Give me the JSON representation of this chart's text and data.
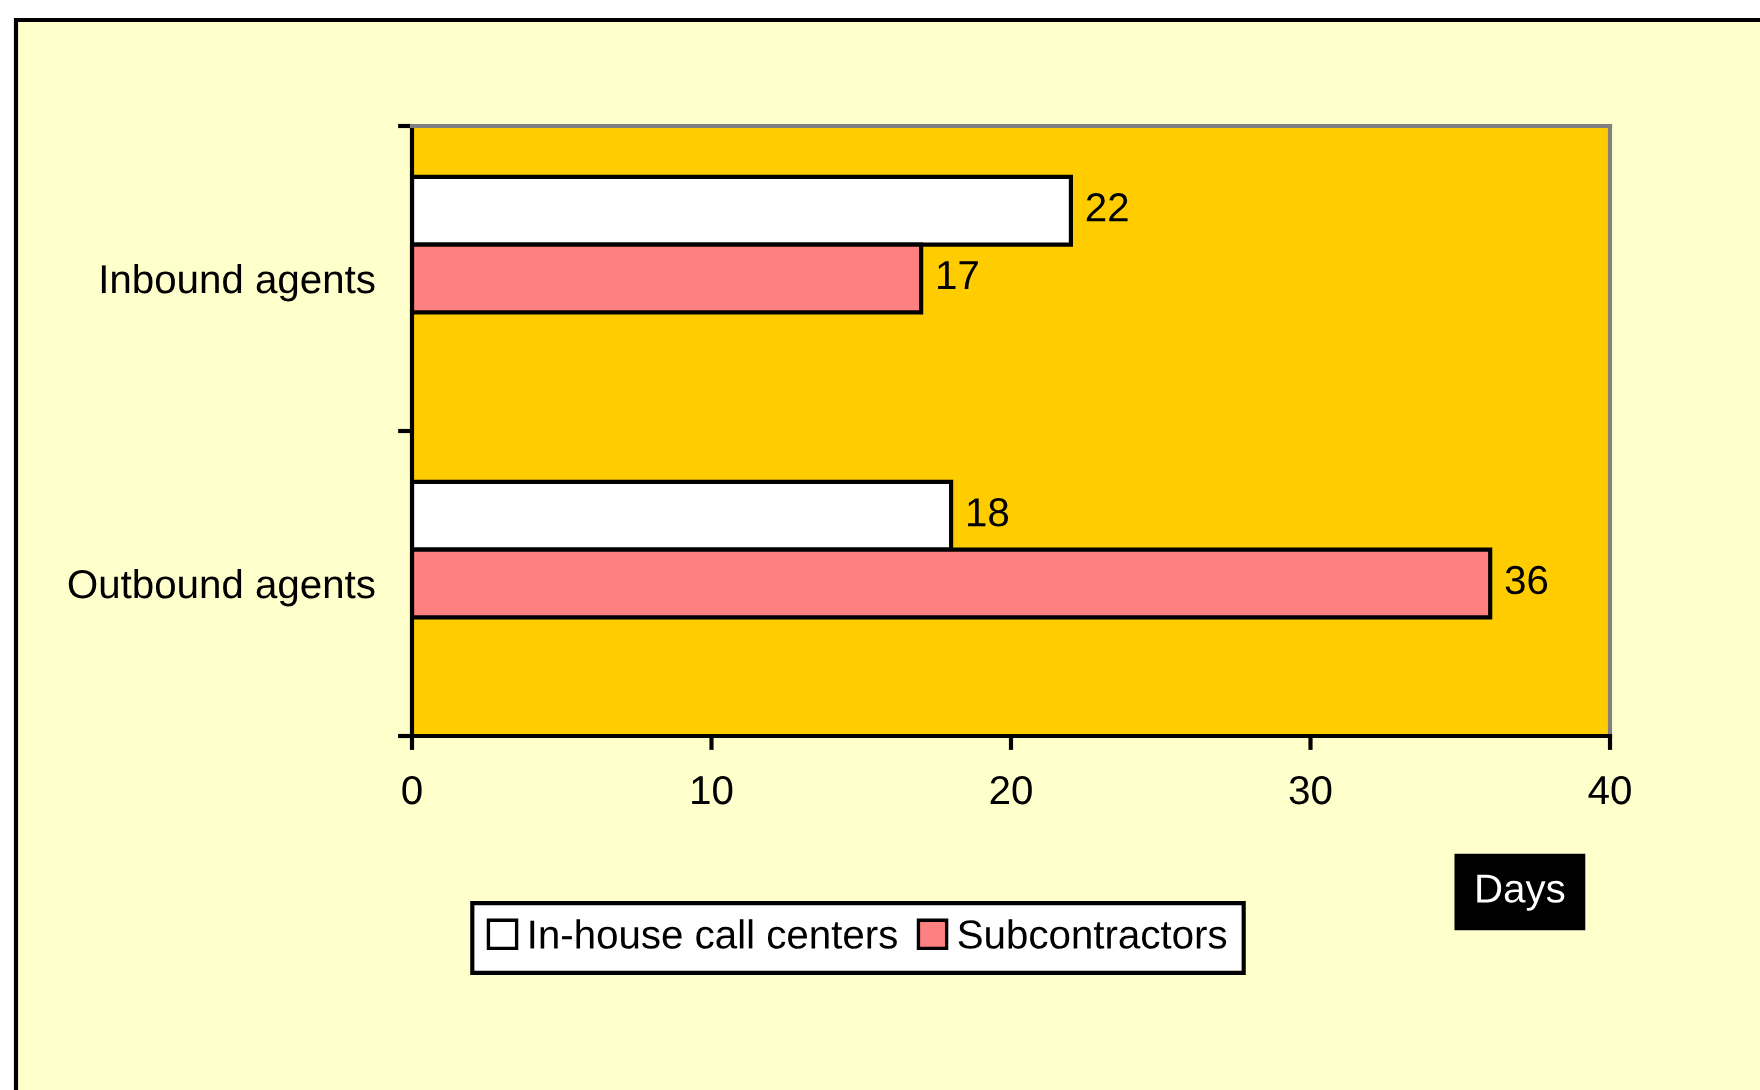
{
  "chart_data": {
    "type": "bar",
    "orientation": "horizontal",
    "categories": [
      "Inbound agents",
      "Outbound agents"
    ],
    "series": [
      {
        "name": "In-house call centers",
        "color": "#ffffff",
        "values": [
          22,
          18
        ]
      },
      {
        "name": "Subcontractors",
        "color": "#ff8080",
        "values": [
          17,
          36
        ]
      }
    ],
    "xlabel": "Days",
    "xlim": [
      0,
      40
    ],
    "xticks": [
      0,
      10,
      20,
      30,
      40
    ],
    "data_labels": true,
    "legend": "bottom"
  }
}
